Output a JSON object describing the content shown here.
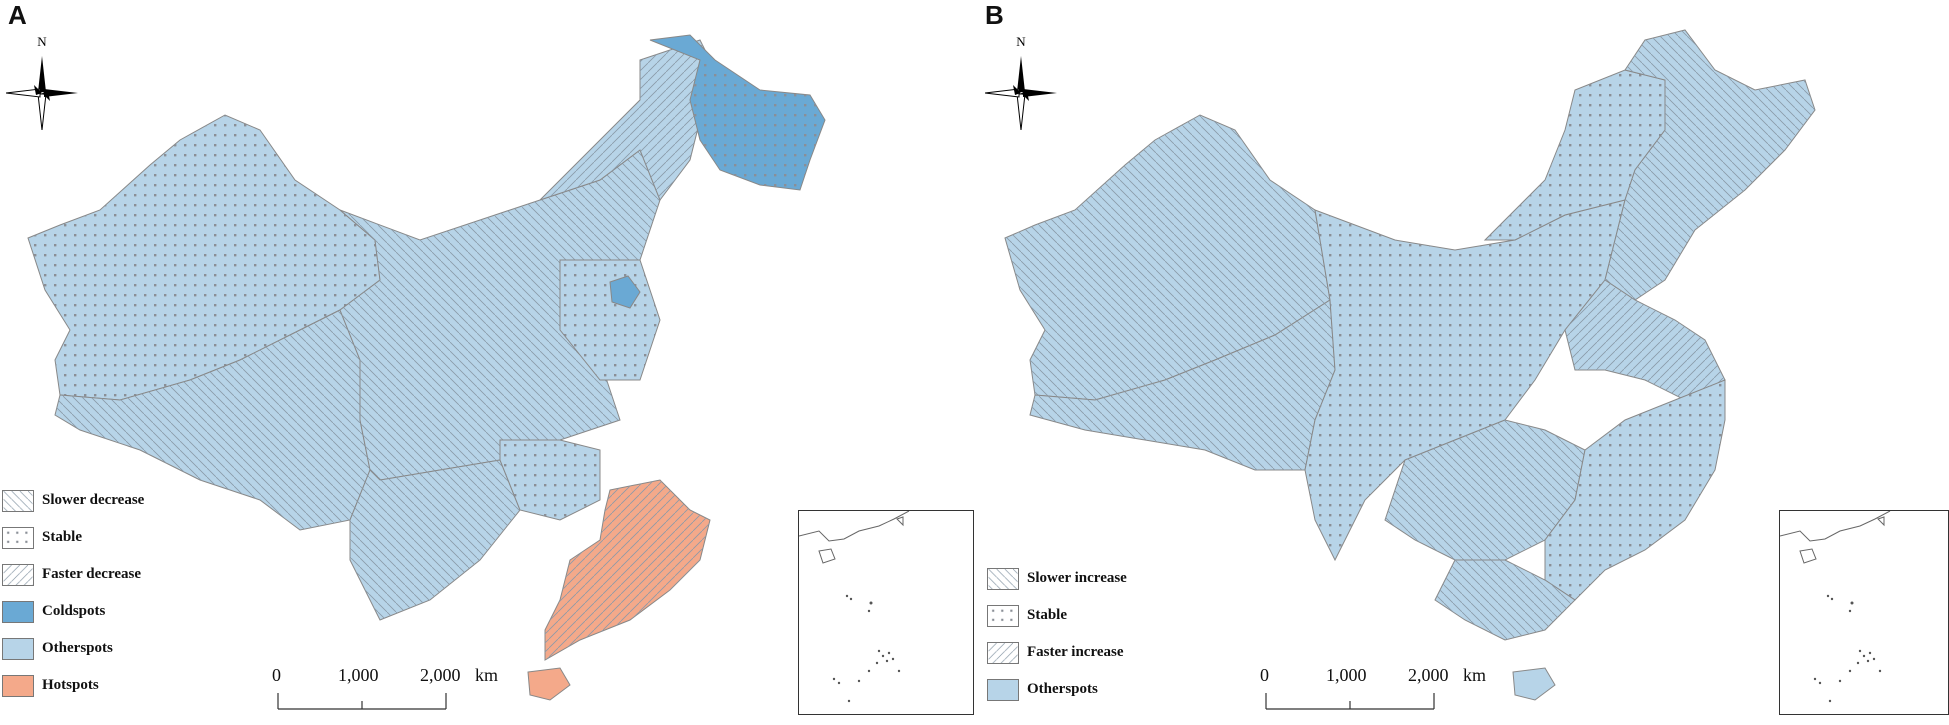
{
  "panels": [
    {
      "label": "A",
      "north": "N",
      "legend": [
        {
          "label": "Slower decrease",
          "pattern": "slower"
        },
        {
          "label": "Stable",
          "pattern": "stable"
        },
        {
          "label": "Faster decrease",
          "pattern": "faster"
        },
        {
          "label": "Coldspots",
          "color": "#6aa9d4"
        },
        {
          "label": "Otherspots",
          "color": "#b7d4e8"
        },
        {
          "label": "Hotspots",
          "color": "#f4a98a"
        }
      ],
      "scale": {
        "ticks": [
          "0",
          "1,000",
          "2,000"
        ],
        "unit": "km"
      }
    },
    {
      "label": "B",
      "north": "N",
      "legend": [
        {
          "label": "Slower increase",
          "pattern": "slower"
        },
        {
          "label": "Stable",
          "pattern": "stable"
        },
        {
          "label": "Faster increase",
          "pattern": "faster"
        },
        {
          "label": "Otherspots",
          "color": "#b7d4e8"
        }
      ],
      "scale": {
        "ticks": [
          "0",
          "1,000",
          "2,000"
        ],
        "unit": "km"
      }
    }
  ],
  "colors": {
    "otherspots": "#b7d4e8",
    "coldspots": "#6aa9d4",
    "hotspots": "#f4a98a",
    "border": "#888888"
  }
}
